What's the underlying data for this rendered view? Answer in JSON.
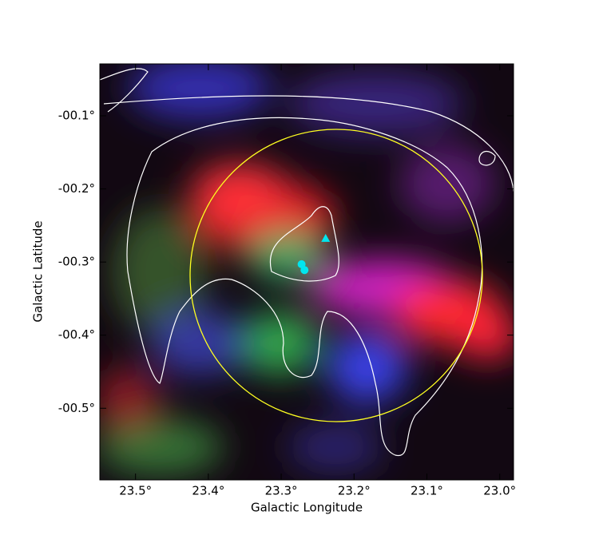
{
  "chart_data": {
    "type": "scatter",
    "x_label": "Galactic Longitude",
    "y_label": "Galactic Latitude",
    "xlim": [
      23.549,
      22.981
    ],
    "ylim": [
      -0.598,
      -0.029
    ],
    "xticks": [
      {
        "value": 23.5,
        "label": "23.5°"
      },
      {
        "value": 23.4,
        "label": "23.4°"
      },
      {
        "value": 23.3,
        "label": "23.3°"
      },
      {
        "value": 23.2,
        "label": "23.2°"
      },
      {
        "value": 23.1,
        "label": "23.1°"
      },
      {
        "value": 23.0,
        "label": "23.0°"
      }
    ],
    "yticks": [
      {
        "value": -0.1,
        "label": "-00.1°"
      },
      {
        "value": -0.2,
        "label": "-00.2°"
      },
      {
        "value": -0.3,
        "label": "-00.3°"
      },
      {
        "value": -0.4,
        "label": "-00.4°"
      },
      {
        "value": -0.5,
        "label": "-00.5°"
      }
    ],
    "series": [
      {
        "marker": "triangle",
        "color": "#00e5ee",
        "x": [
          23.239
        ],
        "values": [
          -0.268
        ]
      },
      {
        "marker": "circle",
        "color": "#00e5ee",
        "x": [
          23.272,
          23.268
        ],
        "values": [
          -0.303,
          -0.311
        ]
      }
    ]
  }
}
